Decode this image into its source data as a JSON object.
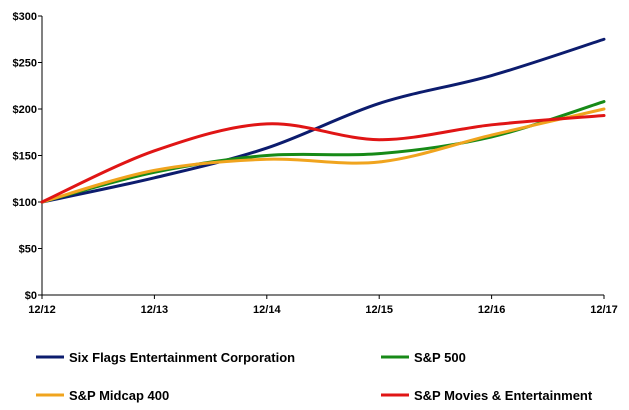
{
  "chart_data": {
    "type": "line",
    "x": [
      "12/12",
      "12/13",
      "12/14",
      "12/15",
      "12/16",
      "12/17"
    ],
    "y_ticks": [
      "$0",
      "$50",
      "$100",
      "$150",
      "$200",
      "$250",
      "$300"
    ],
    "ylim": [
      0,
      300
    ],
    "grid": false,
    "legend_placement": "bottom",
    "series": [
      {
        "name": "Six Flags Entertainment Corporation",
        "color": "#0c1c6e",
        "values": [
          100,
          126,
          158,
          206,
          236,
          275
        ]
      },
      {
        "name": "S&P 500",
        "color": "#178a17",
        "values": [
          100,
          132,
          150,
          152,
          170,
          208
        ]
      },
      {
        "name": "S&P Midcap 400",
        "color": "#f0a41e",
        "values": [
          100,
          134,
          146,
          143,
          172,
          200
        ]
      },
      {
        "name": "S&P Movies & Entertainment",
        "color": "#e01515",
        "values": [
          100,
          155,
          184,
          167,
          183,
          193
        ]
      }
    ]
  }
}
